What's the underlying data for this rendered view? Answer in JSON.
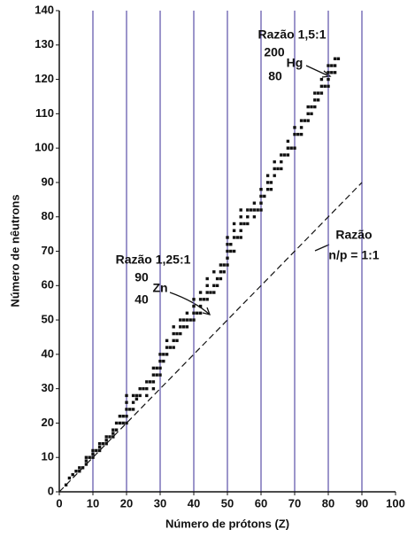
{
  "chart_data": {
    "type": "scatter",
    "x_label": "Número de prótons (Z)",
    "y_label": "Número de nêutrons",
    "xlim": [
      0,
      100
    ],
    "ylim": [
      0,
      140
    ],
    "xticks": [
      0,
      10,
      20,
      30,
      40,
      50,
      60,
      70,
      80,
      90,
      100
    ],
    "yticks": [
      0,
      10,
      20,
      30,
      40,
      50,
      60,
      70,
      80,
      90,
      100,
      110,
      120,
      130,
      140
    ],
    "grid": "x",
    "grid_color": "#5a4fa8",
    "color": "#111111",
    "x": [
      2,
      3,
      4,
      5,
      6,
      6,
      7,
      8,
      8,
      8,
      9,
      10,
      10,
      10,
      11,
      12,
      12,
      12,
      13,
      14,
      14,
      14,
      15,
      16,
      16,
      16,
      17,
      17,
      18,
      18,
      19,
      19,
      20,
      20,
      20,
      20,
      20,
      21,
      22,
      22,
      22,
      23,
      23,
      24,
      24,
      25,
      26,
      26,
      26,
      27,
      28,
      28,
      28,
      28,
      29,
      29,
      30,
      30,
      30,
      30,
      31,
      31,
      32,
      32,
      32,
      33,
      34,
      34,
      34,
      34,
      35,
      35,
      36,
      36,
      36,
      37,
      37,
      38,
      38,
      38,
      39,
      40,
      40,
      40,
      40,
      41,
      42,
      42,
      42,
      42,
      43,
      44,
      44,
      44,
      44,
      45,
      46,
      46,
      46,
      47,
      47,
      48,
      48,
      48,
      49,
      49,
      50,
      50,
      50,
      50,
      50,
      51,
      51,
      52,
      52,
      52,
      52,
      53,
      54,
      54,
      54,
      54,
      54,
      55,
      56,
      56,
      56,
      57,
      58,
      58,
      58,
      59,
      60,
      60,
      60,
      60,
      61,
      62,
      62,
      62,
      63,
      63,
      64,
      64,
      64,
      65,
      66,
      66,
      66,
      67,
      68,
      68,
      68,
      69,
      70,
      70,
      70,
      71,
      72,
      72,
      72,
      73,
      74,
      74,
      74,
      75,
      75,
      76,
      76,
      76,
      77,
      77,
      78,
      78,
      78,
      79,
      80,
      80,
      80,
      80,
      81,
      81,
      82,
      82,
      82,
      83
    ],
    "values": [
      2,
      4,
      5,
      6,
      6,
      7,
      7,
      8,
      9,
      10,
      10,
      10,
      11,
      12,
      12,
      12,
      13,
      14,
      14,
      14,
      15,
      16,
      16,
      16,
      17,
      18,
      18,
      20,
      20,
      22,
      20,
      22,
      20,
      22,
      24,
      26,
      28,
      24,
      24,
      26,
      28,
      27,
      28,
      28,
      30,
      30,
      28,
      30,
      32,
      32,
      30,
      32,
      34,
      36,
      34,
      36,
      34,
      36,
      38,
      40,
      38,
      40,
      40,
      42,
      44,
      42,
      42,
      44,
      46,
      48,
      44,
      46,
      46,
      48,
      50,
      48,
      50,
      48,
      50,
      52,
      50,
      50,
      52,
      54,
      56,
      52,
      52,
      54,
      56,
      58,
      56,
      56,
      58,
      60,
      62,
      58,
      58,
      60,
      64,
      60,
      62,
      62,
      64,
      66,
      64,
      66,
      66,
      68,
      70,
      72,
      74,
      70,
      72,
      70,
      74,
      76,
      78,
      74,
      74,
      76,
      78,
      80,
      82,
      78,
      78,
      80,
      82,
      82,
      80,
      82,
      84,
      82,
      82,
      84,
      86,
      88,
      86,
      88,
      90,
      92,
      88,
      90,
      92,
      94,
      96,
      94,
      94,
      96,
      98,
      98,
      98,
      100,
      102,
      100,
      100,
      104,
      106,
      104,
      104,
      106,
      108,
      108,
      108,
      110,
      112,
      110,
      112,
      112,
      114,
      116,
      114,
      116,
      116,
      118,
      120,
      118,
      118,
      120,
      122,
      124,
      122,
      124,
      122,
      124,
      126,
      126
    ],
    "reference_line": {
      "x": [
        0,
        90
      ],
      "values": [
        0,
        90
      ]
    },
    "annotations": [
      "Razão 1,5:1",
      "200",
      "Hg",
      "80",
      "Razão 1,25:1",
      "90",
      "Zn",
      "40",
      "Razão",
      "n/p = 1:1"
    ]
  }
}
